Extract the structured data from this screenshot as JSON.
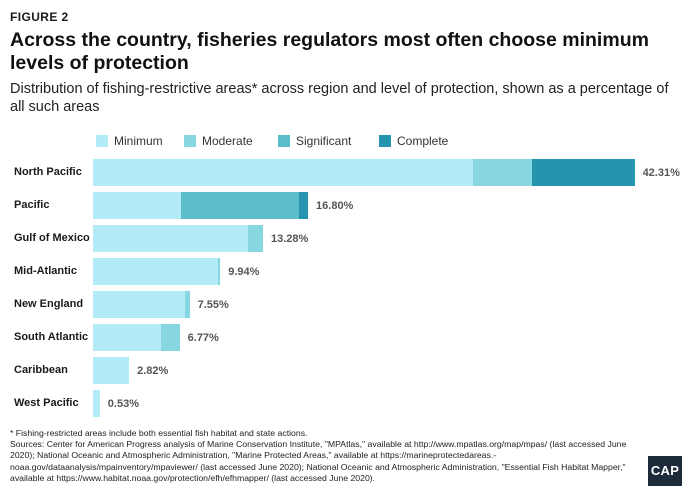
{
  "figure_label": "FIGURE 2",
  "title": "Across the country, fisheries regulators most often choose minimum levels of protection",
  "subtitle": "Distribution of fishing-restrictive areas* across region and level of protection, shown as a percentage of all such areas",
  "chart_data": {
    "type": "bar",
    "orientation": "horizontal",
    "stacked": true,
    "categories": [
      "North Pacific",
      "Pacific",
      "Gulf of Mexico",
      "Mid-Atlantic",
      "New England",
      "South Atlantic",
      "Caribbean",
      "West Pacific"
    ],
    "series": [
      {
        "name": "Minimum",
        "color": "#b3ecf6",
        "values": [
          29.7,
          6.9,
          12.1,
          9.8,
          7.2,
          5.3,
          2.82,
          0.53
        ]
      },
      {
        "name": "Moderate",
        "color": "#89d6e3",
        "values": [
          4.6,
          0.0,
          1.18,
          0.14,
          0.35,
          1.47,
          0,
          0
        ]
      },
      {
        "name": "Significant",
        "color": "#5bbcca",
        "values": [
          0.0,
          9.2,
          0,
          0,
          0,
          0,
          0,
          0
        ]
      },
      {
        "name": "Complete",
        "color": "#2594ae",
        "values": [
          8.01,
          0.7,
          0,
          0,
          0,
          0,
          0,
          0
        ]
      }
    ],
    "total_labels": [
      "42.31%",
      "16.80%",
      "13.28%",
      "9.94%",
      "7.55%",
      "6.77%",
      "2.82%",
      "0.53%"
    ],
    "legend_position": "top",
    "grid": false
  },
  "footnote": {
    "line1": "* Fishing-restricted areas include both essential fish habitat and state actions.",
    "line2": "Sources: Center for American Progress analysis of Marine Conservation Institute, \"MPAtlas,\" available at http://www.mpatlas.org/map/mpas/ (last accessed June 2020); National Oceanic and Atmospheric Administration, \"Marine Protected Areas,\" available at https://marineprotectedareas.-noaa.gov/dataanalysis/mpainventory/mpaviewer/ (last accessed June 2020); National Oceanic and Atmospheric Administration, \"Essential Fish Habitat Mapper,\" available at https://www.habitat.noaa.gov/protection/efh/efhmapper/ (last accessed June 2020)."
  },
  "logo_text": "CAP"
}
